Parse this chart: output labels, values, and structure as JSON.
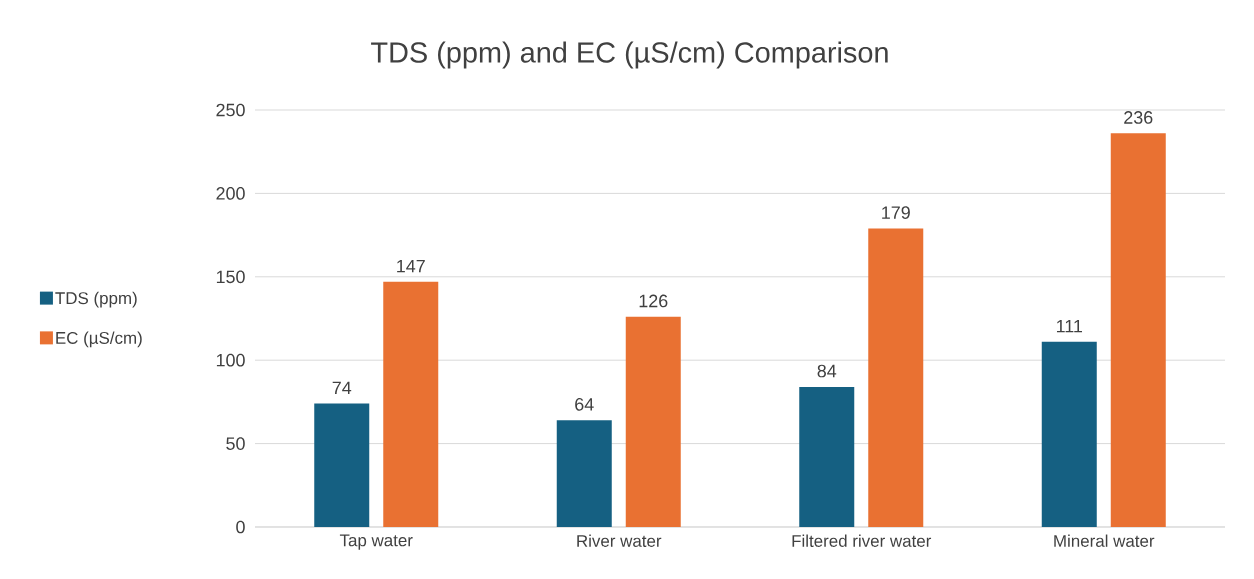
{
  "chart_data": {
    "type": "bar",
    "title": "TDS (ppm) and EC (µS/cm) Comparison",
    "categories": [
      "Tap water",
      "River water",
      "Filtered river water",
      "Mineral water"
    ],
    "series": [
      {
        "name": "TDS (ppm)",
        "color": "#156082",
        "values": [
          74,
          64,
          84,
          111
        ]
      },
      {
        "name": "EC (µS/cm)",
        "color": "#e97132",
        "values": [
          147,
          126,
          179,
          236
        ]
      }
    ],
    "ylim": [
      0,
      250
    ],
    "yticks": [
      0,
      50,
      100,
      150,
      200,
      250
    ],
    "grid": "y",
    "legend": "left",
    "data_labels": true
  }
}
